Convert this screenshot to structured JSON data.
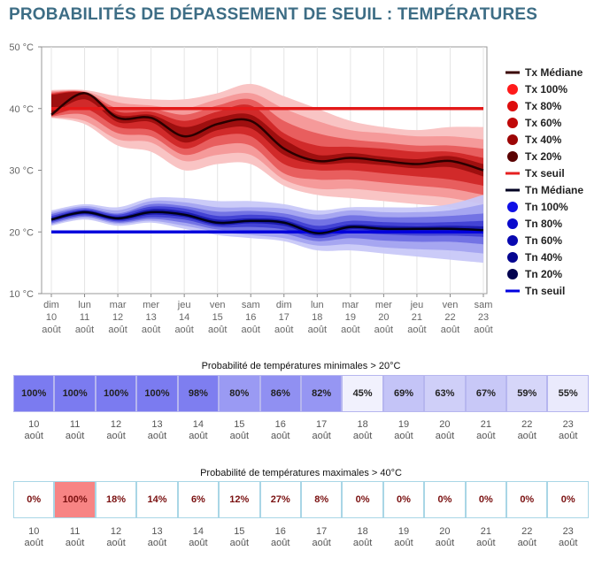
{
  "page": {
    "title": "PROBABILITÉS DE DÉPASSEMENT DE SEUIL : TEMPÉRATURES"
  },
  "legend": {
    "items": [
      {
        "label": "Tx Médiane",
        "kind": "line",
        "color": "#3a0000"
      },
      {
        "label": "Tx 100%",
        "kind": "dot",
        "color": "#ff1a1a"
      },
      {
        "label": "Tx 80%",
        "kind": "dot",
        "color": "#dd0d0d"
      },
      {
        "label": "Tx 60%",
        "kind": "dot",
        "color": "#c00808"
      },
      {
        "label": "Tx 40%",
        "kind": "dot",
        "color": "#9c0505"
      },
      {
        "label": "Tx 20%",
        "kind": "dot",
        "color": "#5a0202"
      },
      {
        "label": "Tx seuil",
        "kind": "line",
        "color": "#e62020"
      },
      {
        "label": "Tn Médiane",
        "kind": "line",
        "color": "#000022"
      },
      {
        "label": "Tn 100%",
        "kind": "dot",
        "color": "#0f0fe6"
      },
      {
        "label": "Tn 80%",
        "kind": "dot",
        "color": "#0a0acc"
      },
      {
        "label": "Tn 60%",
        "kind": "dot",
        "color": "#0808b0"
      },
      {
        "label": "Tn 40%",
        "kind": "dot",
        "color": "#050590"
      },
      {
        "label": "Tn 20%",
        "kind": "dot",
        "color": "#02024f"
      },
      {
        "label": "Tn seuil",
        "kind": "line",
        "color": "#0000e0"
      }
    ]
  },
  "chart_data": [
    {
      "type": "area",
      "title": "",
      "ylim": [
        10,
        50
      ],
      "yticks": [
        "10 °C",
        "20 °C",
        "30 °C",
        "40 °C",
        "50 °C"
      ],
      "x_labels": [
        [
          "dim",
          "10",
          "août"
        ],
        [
          "lun",
          "11",
          "août"
        ],
        [
          "mar",
          "12",
          "août"
        ],
        [
          "mer",
          "13",
          "août"
        ],
        [
          "jeu",
          "14",
          "août"
        ],
        [
          "ven",
          "15",
          "août"
        ],
        [
          "sam",
          "16",
          "août"
        ],
        [
          "dim",
          "17",
          "août"
        ],
        [
          "lun",
          "18",
          "août"
        ],
        [
          "mar",
          "19",
          "août"
        ],
        [
          "mer",
          "20",
          "août"
        ],
        [
          "jeu",
          "21",
          "août"
        ],
        [
          "ven",
          "22",
          "août"
        ],
        [
          "sam",
          "23",
          "août"
        ]
      ],
      "tx": {
        "median": [
          39,
          42.5,
          38.5,
          38.5,
          35.5,
          37.5,
          38,
          33.5,
          31.5,
          32,
          31.5,
          31,
          31.5,
          30
        ],
        "band_100": [
          [
            38.5,
            43
          ],
          [
            37.5,
            43
          ],
          [
            34,
            42
          ],
          [
            33,
            41.5
          ],
          [
            30,
            41.5
          ],
          [
            31,
            42.5
          ],
          [
            31,
            44
          ],
          [
            27.5,
            42
          ],
          [
            26,
            40
          ],
          [
            25.5,
            38
          ],
          [
            25,
            37
          ],
          [
            24.5,
            36.5
          ],
          [
            24,
            37
          ],
          [
            22.5,
            37
          ]
        ],
        "band_80": [
          [
            38.6,
            42.8
          ],
          [
            38,
            42.8
          ],
          [
            35,
            41
          ],
          [
            34.5,
            40.5
          ],
          [
            31.5,
            40
          ],
          [
            32.5,
            41.5
          ],
          [
            32.5,
            42.5
          ],
          [
            28.5,
            40
          ],
          [
            27,
            38
          ],
          [
            27,
            36.5
          ],
          [
            26.5,
            36
          ],
          [
            26,
            35.5
          ],
          [
            25.5,
            35.5
          ],
          [
            24.5,
            35
          ]
        ],
        "band_60": [
          [
            38.7,
            42.6
          ],
          [
            39,
            42.7
          ],
          [
            36,
            40
          ],
          [
            35.5,
            40
          ],
          [
            32.5,
            39
          ],
          [
            34,
            40.5
          ],
          [
            34,
            41.5
          ],
          [
            29.5,
            38
          ],
          [
            28.5,
            36
          ],
          [
            28.5,
            35
          ],
          [
            28,
            34.5
          ],
          [
            27.5,
            34
          ],
          [
            27,
            34
          ],
          [
            26,
            33.5
          ]
        ],
        "band_40": [
          [
            38.8,
            42.4
          ],
          [
            40,
            42.6
          ],
          [
            37,
            39.5
          ],
          [
            36.5,
            39.5
          ],
          [
            33.5,
            38
          ],
          [
            35.5,
            39.5
          ],
          [
            35.5,
            40.5
          ],
          [
            31,
            36
          ],
          [
            30,
            34
          ],
          [
            30,
            33.8
          ],
          [
            29.5,
            33.5
          ],
          [
            29,
            33
          ],
          [
            28.5,
            33
          ],
          [
            27.5,
            32
          ]
        ],
        "band_20": [
          [
            38.9,
            42.2
          ],
          [
            41.5,
            42.5
          ],
          [
            37.8,
            39
          ],
          [
            37.8,
            39
          ],
          [
            34.5,
            37
          ],
          [
            36.5,
            38.5
          ],
          [
            36.8,
            39
          ],
          [
            32.5,
            35
          ],
          [
            31,
            32.5
          ],
          [
            31.2,
            32.8
          ],
          [
            30.8,
            32.2
          ],
          [
            30.3,
            31.8
          ],
          [
            30.5,
            32.3
          ],
          [
            29,
            31
          ]
        ],
        "threshold": 40
      },
      "tn": {
        "median": [
          22,
          23.2,
          22.2,
          23.2,
          22.8,
          21.5,
          21.8,
          21.5,
          19.8,
          20.8,
          20.5,
          20.5,
          20.5,
          20.3
        ],
        "band_100": [
          [
            21,
            23.5
          ],
          [
            22,
            24.5
          ],
          [
            21,
            24
          ],
          [
            21.5,
            25.5
          ],
          [
            20.5,
            25.5
          ],
          [
            19.5,
            25
          ],
          [
            19,
            25
          ],
          [
            18.5,
            24.5
          ],
          [
            17,
            23.5
          ],
          [
            17,
            24
          ],
          [
            16.5,
            24
          ],
          [
            16,
            24
          ],
          [
            15.5,
            24.5
          ],
          [
            15,
            26
          ]
        ],
        "band_80": [
          [
            21.2,
            23.2
          ],
          [
            22.3,
            24.2
          ],
          [
            21.3,
            23.5
          ],
          [
            21.8,
            25
          ],
          [
            21,
            24.8
          ],
          [
            20,
            24
          ],
          [
            19.5,
            24
          ],
          [
            19,
            23.8
          ],
          [
            17.8,
            22.8
          ],
          [
            18,
            23.5
          ],
          [
            17.5,
            23.2
          ],
          [
            17.2,
            23.2
          ],
          [
            17,
            23.5
          ],
          [
            16.5,
            24.5
          ]
        ],
        "band_60": [
          [
            21.4,
            22.9
          ],
          [
            22.5,
            23.9
          ],
          [
            21.5,
            23
          ],
          [
            22.1,
            24.5
          ],
          [
            21.5,
            24.2
          ],
          [
            20.4,
            23.3
          ],
          [
            20.2,
            23.4
          ],
          [
            19.7,
            23
          ],
          [
            18.5,
            22
          ],
          [
            19,
            22.7
          ],
          [
            18.6,
            22.4
          ],
          [
            18.4,
            22.4
          ],
          [
            18.4,
            22.6
          ],
          [
            18,
            23
          ]
        ],
        "band_40": [
          [
            21.6,
            22.6
          ],
          [
            22.7,
            23.7
          ],
          [
            21.7,
            22.8
          ],
          [
            22.4,
            24.1
          ],
          [
            22,
            23.8
          ],
          [
            20.8,
            22.6
          ],
          [
            20.8,
            22.8
          ],
          [
            20.4,
            22.4
          ],
          [
            19,
            21
          ],
          [
            19.8,
            21.8
          ],
          [
            19.6,
            21.6
          ],
          [
            19.4,
            21.5
          ],
          [
            19.4,
            21.6
          ],
          [
            19.2,
            21.8
          ]
        ],
        "band_20": [
          [
            21.8,
            22.3
          ],
          [
            22.9,
            23.5
          ],
          [
            21.9,
            22.5
          ],
          [
            22.8,
            23.7
          ],
          [
            22.4,
            23.3
          ],
          [
            21.1,
            22
          ],
          [
            21.4,
            22.2
          ],
          [
            21,
            21.9
          ],
          [
            19.4,
            20.4
          ],
          [
            20.4,
            21.2
          ],
          [
            20.1,
            21
          ],
          [
            20,
            20.9
          ],
          [
            20,
            21
          ],
          [
            19.8,
            20.9
          ]
        ],
        "threshold": 20
      }
    },
    {
      "type": "table",
      "title": "Probabilité de températures minimales > 20°C",
      "days": [
        "10",
        "11",
        "12",
        "13",
        "14",
        "15",
        "16",
        "17",
        "18",
        "19",
        "20",
        "21",
        "22",
        "23"
      ],
      "month": "août",
      "values": [
        "100%",
        "100%",
        "100%",
        "100%",
        "98%",
        "80%",
        "86%",
        "82%",
        "45%",
        "69%",
        "63%",
        "67%",
        "59%",
        "55%"
      ],
      "fills": [
        "#7b7bf0",
        "#7b7bf0",
        "#7b7bf0",
        "#7b7bf0",
        "#7e7ef0",
        "#9a9af3",
        "#9090f2",
        "#9696f3",
        "#f1f1fd",
        "#c4c4f7",
        "#cfcff8",
        "#c8c8f7",
        "#d6d6f9",
        "#eaeafc"
      ]
    },
    {
      "type": "table",
      "title": "Probabilité de températures maximales > 40°C",
      "days": [
        "10",
        "11",
        "12",
        "13",
        "14",
        "15",
        "16",
        "17",
        "18",
        "19",
        "20",
        "21",
        "22",
        "23"
      ],
      "month": "août",
      "values": [
        "0%",
        "100%",
        "18%",
        "14%",
        "6%",
        "12%",
        "27%",
        "8%",
        "0%",
        "0%",
        "0%",
        "0%",
        "0%",
        "0%"
      ],
      "fills": [
        "#ffffff",
        "#f78484",
        "#ffffff",
        "#ffffff",
        "#ffffff",
        "#ffffff",
        "#ffffff",
        "#ffffff",
        "#ffffff",
        "#ffffff",
        "#ffffff",
        "#ffffff",
        "#ffffff",
        "#ffffff"
      ]
    }
  ]
}
